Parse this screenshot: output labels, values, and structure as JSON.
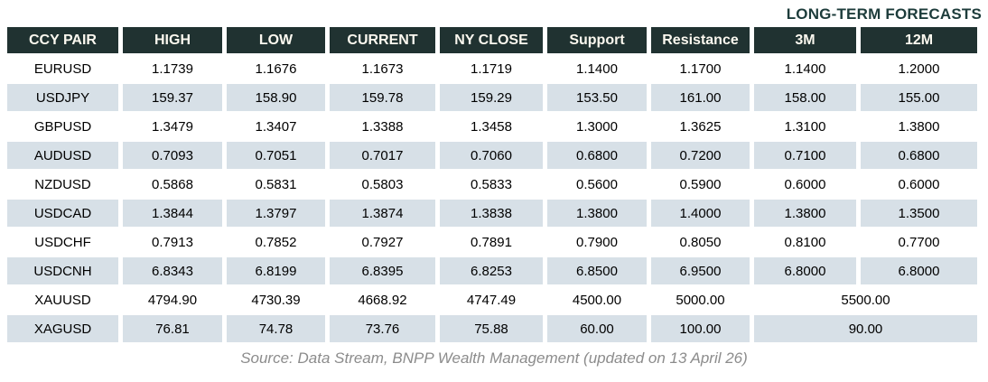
{
  "title": "LONG-TERM FORECASTS",
  "source_note": "Source: Data Stream, BNPP Wealth Management (updated on 13 April 26)",
  "colors": {
    "header_bg": "#203231",
    "header_text": "#fbf8ef",
    "alt_row_bg": "#d7e0e7",
    "title_text": "#1d3c3b",
    "data_text": "#000000",
    "source_text": "#8c8c8c"
  },
  "chart_data": {
    "type": "table",
    "title": "LONG-TERM FORECASTS",
    "columns": [
      "CCY PAIR",
      "HIGH",
      "LOW",
      "CURRENT",
      "NY CLOSE",
      "Support",
      "Resistance",
      "3M",
      "12M"
    ],
    "rows": [
      {
        "pair": "EURUSD",
        "values": [
          "1.1739",
          "1.1676",
          "1.1673",
          "1.1719",
          "1.1400",
          "1.1700",
          "1.1400",
          "1.2000"
        ]
      },
      {
        "pair": "USDJPY",
        "values": [
          "159.37",
          "158.90",
          "159.78",
          "159.29",
          "153.50",
          "161.00",
          "158.00",
          "155.00"
        ]
      },
      {
        "pair": "GBPUSD",
        "values": [
          "1.3479",
          "1.3407",
          "1.3388",
          "1.3458",
          "1.3000",
          "1.3625",
          "1.3100",
          "1.3800"
        ]
      },
      {
        "pair": "AUDUSD",
        "values": [
          "0.7093",
          "0.7051",
          "0.7017",
          "0.7060",
          "0.6800",
          "0.7200",
          "0.7100",
          "0.6800"
        ]
      },
      {
        "pair": "NZDUSD",
        "values": [
          "0.5868",
          "0.5831",
          "0.5803",
          "0.5833",
          "0.5600",
          "0.5900",
          "0.6000",
          "0.6000"
        ]
      },
      {
        "pair": "USDCAD",
        "values": [
          "1.3844",
          "1.3797",
          "1.3874",
          "1.3838",
          "1.3800",
          "1.4000",
          "1.3800",
          "1.3500"
        ]
      },
      {
        "pair": "USDCHF",
        "values": [
          "0.7913",
          "0.7852",
          "0.7927",
          "0.7891",
          "0.7900",
          "0.8050",
          "0.8100",
          "0.7700"
        ]
      },
      {
        "pair": "USDCNH",
        "values": [
          "6.8343",
          "6.8199",
          "6.8395",
          "6.8253",
          "6.8500",
          "6.9500",
          "6.8000",
          "6.8000"
        ]
      },
      {
        "pair": "XAUUSD",
        "values": [
          "4794.90",
          "4730.39",
          "4668.92",
          "4747.49",
          "4500.00",
          "5000.00"
        ],
        "merged_3m_12m": "5500.00"
      },
      {
        "pair": "XAGUSD",
        "values": [
          "76.81",
          "74.78",
          "73.76",
          "75.88",
          "60.00",
          "100.00"
        ],
        "merged_3m_12m": "90.00"
      }
    ],
    "source": "Source: Data Stream, BNPP Wealth Management (updated on 13 April 26)"
  }
}
